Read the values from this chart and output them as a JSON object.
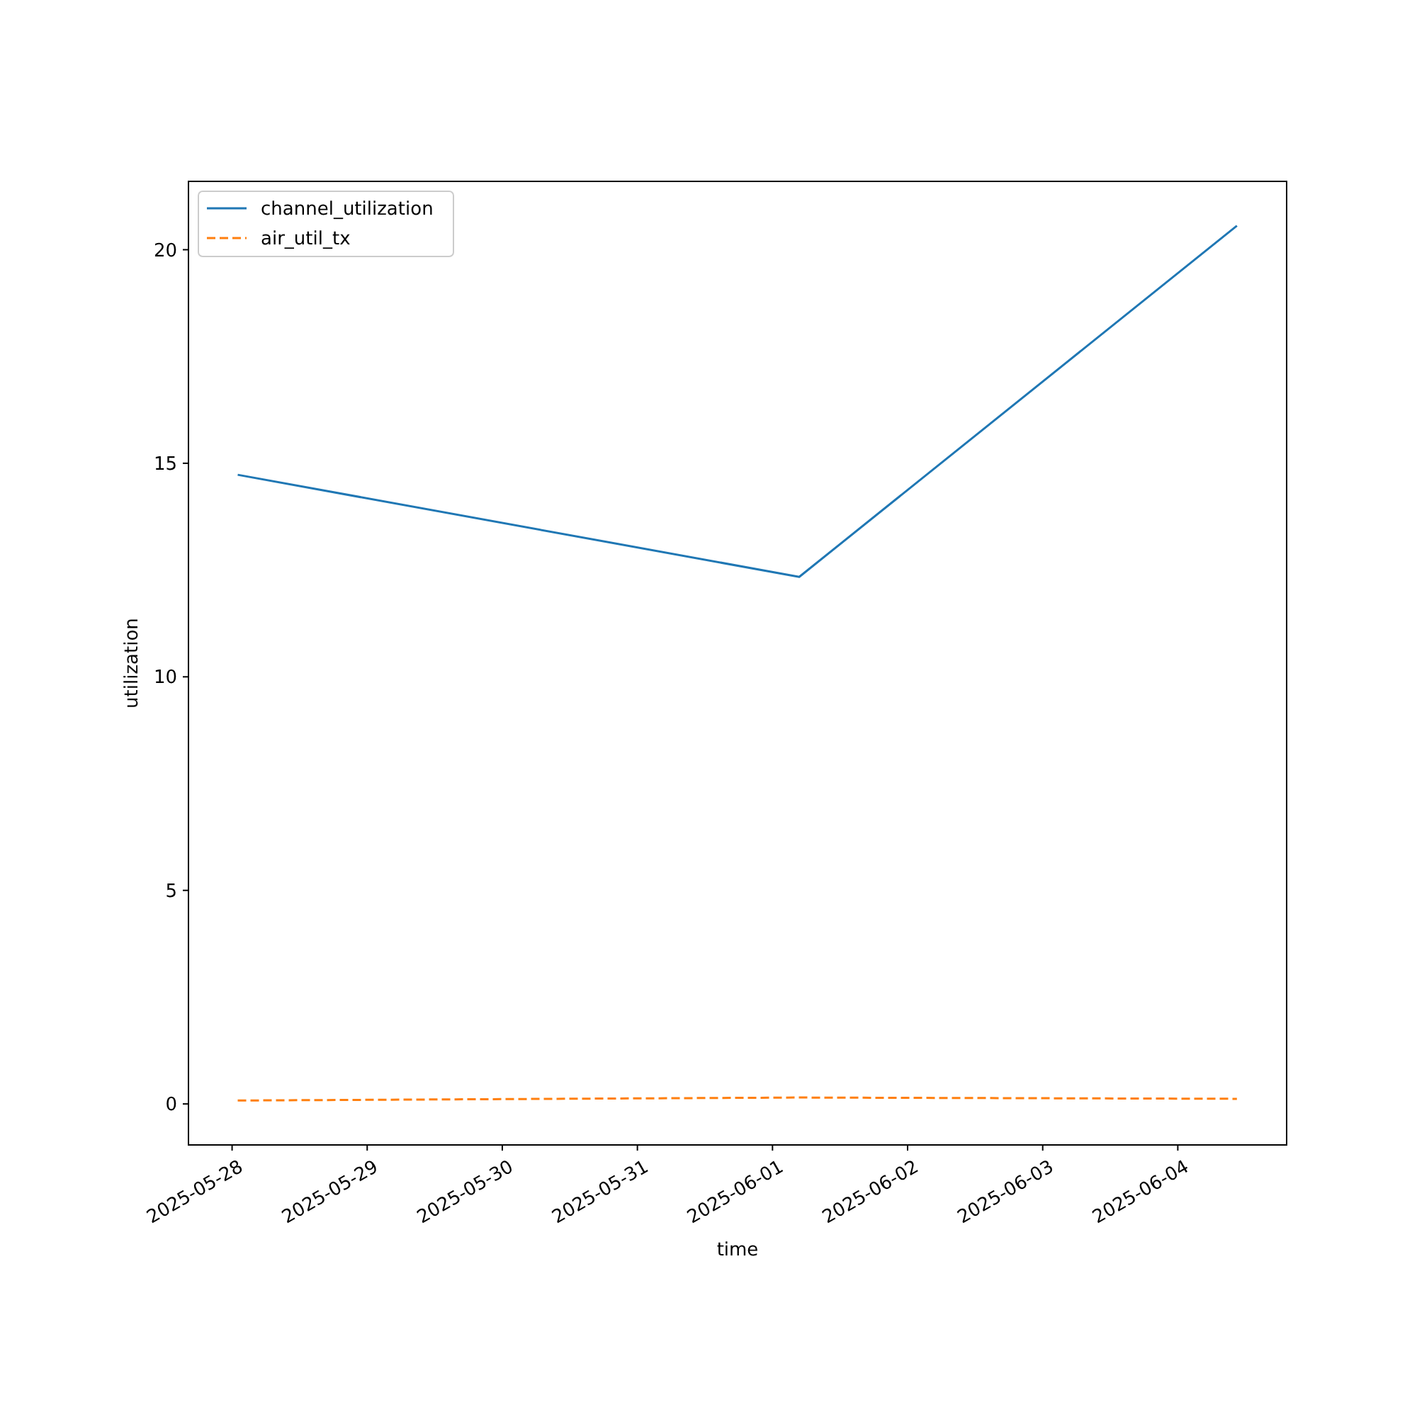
{
  "chart_data": {
    "type": "line",
    "xlabel": "time",
    "ylabel": "utilization",
    "x": [
      "2025-05-28T01:00",
      "2025-06-01T04:45",
      "2025-06-04T10:30"
    ],
    "series": [
      {
        "name": "channel_utilization",
        "color": "#1f77b4",
        "values": [
          14.73,
          12.34,
          20.56
        ],
        "line_style": "solid"
      },
      {
        "name": "air_util_tx",
        "color": "#ff7f0e",
        "values": [
          0.08,
          0.15,
          0.12
        ],
        "line_style": "dashed"
      }
    ],
    "xlim": [
      "2025-05-27T16:15",
      "2025-06-04T19:20"
    ],
    "xticks": [
      "2025-05-28",
      "2025-05-29",
      "2025-05-30",
      "2025-05-31",
      "2025-06-01",
      "2025-06-02",
      "2025-06-03",
      "2025-06-04"
    ],
    "ylim": [
      -0.96,
      21.6
    ],
    "yticks": [
      0,
      5,
      10,
      15,
      20
    ],
    "legend": "top left",
    "grid": false,
    "marker": "none"
  }
}
